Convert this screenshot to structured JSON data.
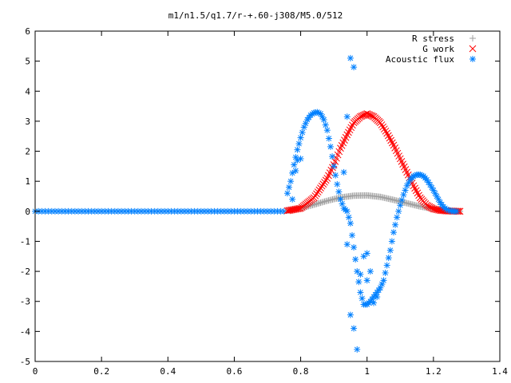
{
  "chart_data": {
    "type": "scatter",
    "title": "m1/n1.5/q1.7/r-+.60-j308/M5.0/512",
    "xlabel": "",
    "ylabel": "",
    "xlim": [
      0,
      1.4
    ],
    "ylim": [
      -5,
      6
    ],
    "x_ticks": [
      "0",
      "0.2",
      "0.4",
      "0.6",
      "0.8",
      "1",
      "1.2",
      "1.4"
    ],
    "y_ticks": [
      "-5",
      "-4",
      "-3",
      "-2",
      "-1",
      "0",
      "1",
      "2",
      "3",
      "4",
      "5",
      "6"
    ],
    "grid": false,
    "legend_position": "top-right",
    "series": [
      {
        "name": "R stress",
        "marker": "plus",
        "color": "#a0a0a0",
        "x": [
          0.76,
          0.8,
          0.84,
          0.88,
          0.92,
          0.96,
          1.0,
          1.04,
          1.08,
          1.12,
          1.16,
          1.2,
          1.24,
          1.28
        ],
        "y": [
          0.02,
          0.1,
          0.22,
          0.35,
          0.46,
          0.52,
          0.53,
          0.48,
          0.38,
          0.27,
          0.16,
          0.08,
          0.03,
          0.0
        ]
      },
      {
        "name": "G work",
        "marker": "cross",
        "color": "#ff0000",
        "x": [
          0.76,
          0.8,
          0.84,
          0.88,
          0.9,
          0.92,
          0.94,
          0.96,
          0.98,
          1.0,
          1.02,
          1.04,
          1.06,
          1.08,
          1.1,
          1.12,
          1.14,
          1.16,
          1.18,
          1.2,
          1.22,
          1.24,
          1.28
        ],
        "y": [
          0.02,
          0.1,
          0.45,
          1.1,
          1.55,
          2.1,
          2.55,
          2.95,
          3.15,
          3.25,
          3.15,
          2.95,
          2.6,
          2.2,
          1.75,
          1.3,
          0.85,
          0.45,
          0.2,
          0.08,
          0.03,
          0.01,
          0.0
        ]
      },
      {
        "name": "Acoustic flux",
        "marker": "star",
        "color": "#0080ff",
        "x": [
          0.76,
          0.77,
          0.78,
          0.79,
          0.8,
          0.81,
          0.82,
          0.83,
          0.84,
          0.85,
          0.86,
          0.87,
          0.88,
          0.89,
          0.9,
          0.91,
          0.92,
          0.93,
          0.94,
          0.95,
          0.96,
          0.97,
          0.98,
          0.99,
          1.0,
          1.01,
          1.02,
          1.03,
          1.04,
          1.05,
          1.06,
          1.07,
          1.08,
          1.09,
          1.1,
          1.11,
          1.12,
          1.13,
          1.14,
          1.15,
          1.16,
          1.17,
          1.18,
          1.19,
          1.2,
          1.21,
          1.22,
          1.23,
          1.24,
          1.25,
          1.26,
          1.27,
          0.775,
          0.785,
          0.79,
          0.8,
          0.93,
          0.94,
          0.95,
          0.96,
          0.94,
          0.95,
          0.96,
          0.97,
          0.98,
          0.99,
          1.0,
          1.0,
          1.01,
          1.02,
          1.03
        ],
        "y": [
          0.6,
          1.0,
          1.55,
          2.05,
          2.45,
          2.8,
          3.05,
          3.2,
          3.28,
          3.3,
          3.25,
          3.05,
          2.7,
          2.15,
          1.5,
          0.9,
          0.4,
          0.1,
          0.0,
          -0.4,
          -1.2,
          -2.0,
          -2.7,
          -3.1,
          -3.1,
          -3.0,
          -2.85,
          -2.7,
          -2.55,
          -2.3,
          -1.8,
          -1.3,
          -0.7,
          -0.2,
          0.2,
          0.55,
          0.85,
          1.05,
          1.17,
          1.22,
          1.22,
          1.17,
          1.05,
          0.88,
          0.7,
          0.5,
          0.3,
          0.15,
          0.06,
          0.02,
          0.0,
          0.0,
          0.4,
          1.35,
          1.7,
          1.75,
          1.3,
          3.15,
          5.1,
          4.8,
          -1.1,
          -3.45,
          -3.9,
          -4.6,
          -2.1,
          -1.5,
          -1.4,
          -2.3,
          -2.0,
          -3.05,
          -2.85
        ]
      }
    ]
  }
}
